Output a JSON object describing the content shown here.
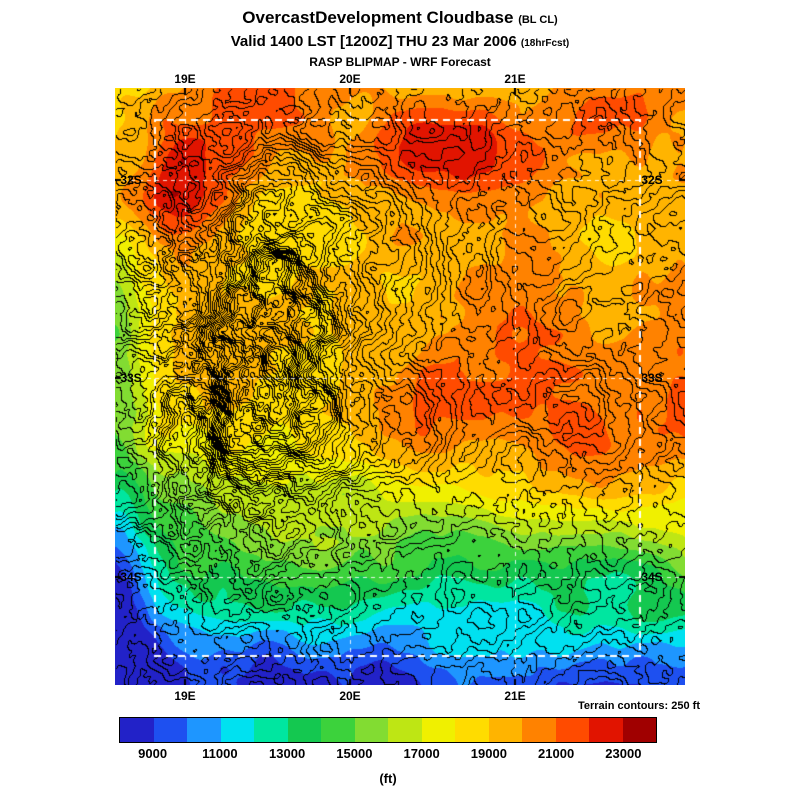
{
  "header": {
    "title": "OvercastDevelopment Cloudbase",
    "title_note": "(BL CL)",
    "valid": "Valid 1400 LST [1200Z] THU 23 Mar 2006",
    "valid_note": "(18hrFcst)",
    "model": "RASP BLIPMAP - WRF Forecast"
  },
  "map": {
    "x_ticks": [
      "19E",
      "20E",
      "21E"
    ],
    "y_ticks": [
      "32S",
      "33S",
      "34S"
    ],
    "terrain_note": "Terrain contours: 250 ft"
  },
  "colorbar": {
    "unit": "(ft)",
    "labels": [
      "9000",
      "11000",
      "13000",
      "15000",
      "17000",
      "19000",
      "21000",
      "23000"
    ],
    "colors": [
      "#2222C8",
      "#1E50F0",
      "#1E96FF",
      "#00E1F0",
      "#00E6A0",
      "#14C850",
      "#3CD23C",
      "#82DC32",
      "#BEE614",
      "#F0F000",
      "#FFDC00",
      "#FFB400",
      "#FF8200",
      "#FF4B00",
      "#E11400",
      "#A00000"
    ]
  }
}
